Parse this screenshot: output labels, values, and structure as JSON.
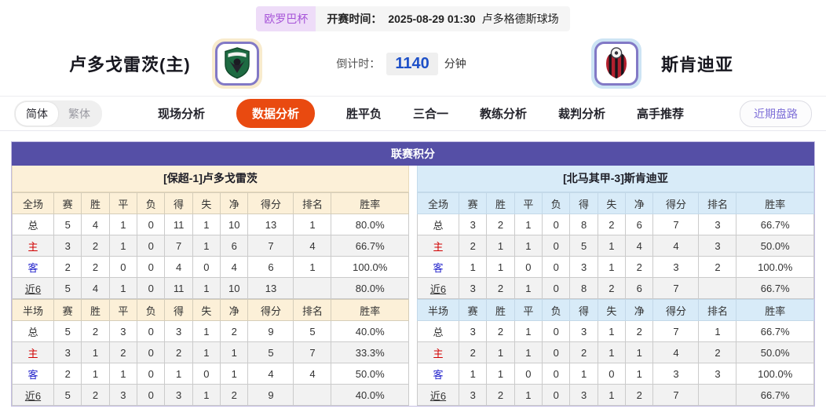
{
  "colors": {
    "accent_purple": "#554fa6",
    "active_tab_orange": "#e94a10",
    "home_accent_cream": "#fcf0d8",
    "away_accent_blue": "#d8ebf8",
    "row_label_home_red": "#d10000",
    "row_label_away_blue": "#2323cc",
    "countdown_blue": "#1e50c8",
    "badge_purple": "#a653d8"
  },
  "top_bar": {
    "league_badge": "欧罗巴杯",
    "kickoff_label": "开赛时间：",
    "kickoff_time": "2025-08-29 01:30",
    "venue": "卢多格德斯球场"
  },
  "match_header": {
    "home_team_name": "卢多戈雷茨(主)",
    "away_team_name": "斯肯迪亚",
    "home_crest": "green-shield-eagle-crest",
    "away_crest": "red-black-striped-crest",
    "countdown_label": "倒计时：",
    "countdown_value": "1140",
    "countdown_unit": "分钟"
  },
  "nav": {
    "lang_simplified": "简体",
    "lang_traditional": "繁体",
    "active_lang": "简体",
    "tabs": [
      {
        "label": "现场分析",
        "active": false
      },
      {
        "label": "数据分析",
        "active": true
      },
      {
        "label": "胜平负",
        "active": false
      },
      {
        "label": "三合一",
        "active": false
      },
      {
        "label": "教练分析",
        "active": false
      },
      {
        "label": "裁判分析",
        "active": false
      },
      {
        "label": "高手推荐",
        "active": false
      }
    ],
    "recent_trends_button": "近期盘路"
  },
  "league_points": {
    "title": "联赛积分",
    "teams": [
      {
        "subtitle": "[保超-1]卢多戈雷茨",
        "theme": "home",
        "tables": [
          {
            "headers": [
              "全场",
              "赛",
              "胜",
              "平",
              "负",
              "得",
              "失",
              "净",
              "得分",
              "排名",
              "胜率"
            ],
            "rows": [
              {
                "label": "总",
                "values": [
                  "5",
                  "4",
                  "1",
                  "0",
                  "11",
                  "1",
                  "10",
                  "13",
                  "1",
                  "80.0%"
                ]
              },
              {
                "label": "主",
                "color": "#d10000",
                "values": [
                  "3",
                  "2",
                  "1",
                  "0",
                  "7",
                  "1",
                  "6",
                  "7",
                  "4",
                  "66.7%"
                ]
              },
              {
                "label": "客",
                "color": "#2323cc",
                "values": [
                  "2",
                  "2",
                  "0",
                  "0",
                  "4",
                  "0",
                  "4",
                  "6",
                  "1",
                  "100.0%"
                ]
              },
              {
                "label": "近6",
                "underline": true,
                "values": [
                  "5",
                  "4",
                  "1",
                  "0",
                  "11",
                  "1",
                  "10",
                  "13",
                  "",
                  "80.0%"
                ]
              }
            ]
          },
          {
            "headers": [
              "半场",
              "赛",
              "胜",
              "平",
              "负",
              "得",
              "失",
              "净",
              "得分",
              "排名",
              "胜率"
            ],
            "rows": [
              {
                "label": "总",
                "values": [
                  "5",
                  "2",
                  "3",
                  "0",
                  "3",
                  "1",
                  "2",
                  "9",
                  "5",
                  "40.0%"
                ]
              },
              {
                "label": "主",
                "color": "#d10000",
                "values": [
                  "3",
                  "1",
                  "2",
                  "0",
                  "2",
                  "1",
                  "1",
                  "5",
                  "7",
                  "33.3%"
                ]
              },
              {
                "label": "客",
                "color": "#2323cc",
                "values": [
                  "2",
                  "1",
                  "1",
                  "0",
                  "1",
                  "0",
                  "1",
                  "4",
                  "4",
                  "50.0%"
                ]
              },
              {
                "label": "近6",
                "underline": true,
                "values": [
                  "5",
                  "2",
                  "3",
                  "0",
                  "3",
                  "1",
                  "2",
                  "9",
                  "",
                  "40.0%"
                ]
              }
            ]
          }
        ]
      },
      {
        "subtitle": "[北马其甲-3]斯肯迪亚",
        "theme": "away",
        "tables": [
          {
            "headers": [
              "全场",
              "赛",
              "胜",
              "平",
              "负",
              "得",
              "失",
              "净",
              "得分",
              "排名",
              "胜率"
            ],
            "rows": [
              {
                "label": "总",
                "values": [
                  "3",
                  "2",
                  "1",
                  "0",
                  "8",
                  "2",
                  "6",
                  "7",
                  "3",
                  "66.7%"
                ]
              },
              {
                "label": "主",
                "color": "#d10000",
                "values": [
                  "2",
                  "1",
                  "1",
                  "0",
                  "5",
                  "1",
                  "4",
                  "4",
                  "3",
                  "50.0%"
                ]
              },
              {
                "label": "客",
                "color": "#2323cc",
                "values": [
                  "1",
                  "1",
                  "0",
                  "0",
                  "3",
                  "1",
                  "2",
                  "3",
                  "2",
                  "100.0%"
                ]
              },
              {
                "label": "近6",
                "underline": true,
                "values": [
                  "3",
                  "2",
                  "1",
                  "0",
                  "8",
                  "2",
                  "6",
                  "7",
                  "",
                  "66.7%"
                ]
              }
            ]
          },
          {
            "headers": [
              "半场",
              "赛",
              "胜",
              "平",
              "负",
              "得",
              "失",
              "净",
              "得分",
              "排名",
              "胜率"
            ],
            "rows": [
              {
                "label": "总",
                "values": [
                  "3",
                  "2",
                  "1",
                  "0",
                  "3",
                  "1",
                  "2",
                  "7",
                  "1",
                  "66.7%"
                ]
              },
              {
                "label": "主",
                "color": "#d10000",
                "values": [
                  "2",
                  "1",
                  "1",
                  "0",
                  "2",
                  "1",
                  "1",
                  "4",
                  "2",
                  "50.0%"
                ]
              },
              {
                "label": "客",
                "color": "#2323cc",
                "values": [
                  "1",
                  "1",
                  "0",
                  "0",
                  "1",
                  "0",
                  "1",
                  "3",
                  "3",
                  "100.0%"
                ]
              },
              {
                "label": "近6",
                "underline": true,
                "values": [
                  "3",
                  "2",
                  "1",
                  "0",
                  "3",
                  "1",
                  "2",
                  "7",
                  "",
                  "66.7%"
                ]
              }
            ]
          }
        ]
      }
    ]
  }
}
